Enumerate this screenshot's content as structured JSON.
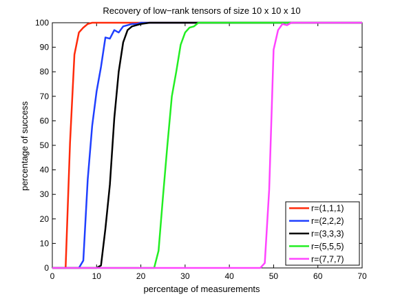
{
  "chart_data": {
    "type": "line",
    "title": "Recovery of low−rank tensors of size 10 x 10 x 10",
    "xlabel": "percentage of measurements",
    "ylabel": "percentage of success",
    "xlim": [
      0,
      70
    ],
    "ylim": [
      0,
      100
    ],
    "xticks": [
      0,
      10,
      20,
      30,
      40,
      50,
      60,
      70
    ],
    "yticks": [
      0,
      10,
      20,
      30,
      40,
      50,
      60,
      70,
      80,
      90,
      100
    ],
    "grid": false,
    "legend_position": "bottom-right",
    "series": [
      {
        "name": "r=(1,1,1)",
        "color": "#ff2a0a",
        "x": [
          0,
          3,
          4,
          5,
          6,
          7,
          8,
          9,
          10,
          70
        ],
        "y": [
          0,
          0,
          51,
          87,
          96,
          98,
          99.5,
          100,
          100,
          100
        ]
      },
      {
        "name": "r=(2,2,2)",
        "color": "#1f3fff",
        "x": [
          0,
          6,
          7,
          8,
          9,
          10,
          11,
          12,
          13,
          14,
          15,
          16,
          17,
          18,
          19,
          20,
          70
        ],
        "y": [
          0,
          0,
          3,
          36,
          58,
          72,
          82,
          94,
          93.5,
          97,
          96,
          98.5,
          99,
          99.5,
          99.5,
          100,
          100
        ]
      },
      {
        "name": "r=(3,3,3)",
        "color": "#000000",
        "x": [
          0,
          10,
          11,
          12,
          13,
          14,
          15,
          16,
          17,
          18,
          19,
          20,
          22,
          70
        ],
        "y": [
          0,
          0,
          1,
          16,
          34,
          61,
          80,
          92,
          97,
          98.5,
          99,
          99.5,
          100,
          100
        ]
      },
      {
        "name": "r=(5,5,5)",
        "color": "#22ee22",
        "x": [
          0,
          23,
          24,
          25,
          26,
          27,
          28,
          29,
          30,
          31,
          32,
          33,
          34,
          70
        ],
        "y": [
          0,
          0,
          7,
          29,
          50,
          70,
          80,
          91,
          96,
          98,
          98.5,
          100,
          100,
          100
        ]
      },
      {
        "name": "r=(7,7,7)",
        "color": "#ff44ff",
        "x": [
          0,
          47,
          48,
          49,
          50,
          51,
          52,
          53,
          54,
          70
        ],
        "y": [
          0,
          0,
          2,
          32,
          89,
          97,
          99.5,
          99,
          100,
          100
        ]
      }
    ]
  }
}
